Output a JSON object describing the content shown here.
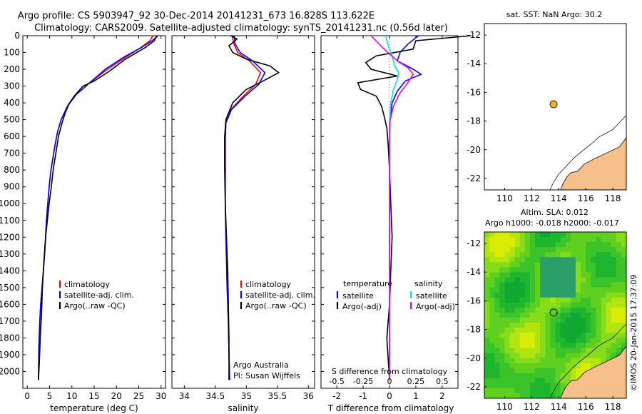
{
  "header": {
    "title_line1": "Argo profile: CS 5903947_92 30-Dec-2014 20141231_673 16.828S 113.622E",
    "title_line2": "Climatology: CARS2009. Satellite-adjusted climatology: synTS_20141231.nc (0.56d later)"
  },
  "footer": {
    "credit": "©IMOS 20-Jan-2015 17:37:09"
  },
  "colors": {
    "climatology": "#ff0000",
    "satellite": "#0000ff",
    "argo": "#000000",
    "sal_satellite": "#00e5ee",
    "sal_argo": "#ee00ee",
    "land": "#f5c08a",
    "float_marker": "#f0b429"
  },
  "chart_data": [
    {
      "type": "line",
      "xlabel": "temperature (deg C)",
      "ylabel": "",
      "xlim": [
        -1,
        31
      ],
      "ylim": [
        2100,
        0
      ],
      "xticks": [
        0,
        5,
        10,
        15,
        20,
        25,
        30
      ],
      "yticks": [
        0,
        100,
        200,
        300,
        400,
        500,
        600,
        700,
        800,
        900,
        1000,
        1100,
        1200,
        1300,
        1400,
        1500,
        1600,
        1700,
        1800,
        1900,
        2000
      ],
      "legend": {
        "placement": "lower-left",
        "entries": [
          "climatology",
          "satellite-adj. clim.",
          "Argo(..raw -QC)"
        ]
      },
      "series": [
        {
          "name": "climatology",
          "x": [
            28.2,
            27.5,
            25.5,
            22,
            18,
            14,
            11,
            9,
            7.6,
            6.8,
            6.3,
            5.8,
            5.3,
            4.9,
            4.6,
            4.3,
            4.1,
            3.9,
            3.6,
            3.3,
            3.0,
            2.8,
            2.6,
            2.5
          ],
          "y": [
            0,
            30,
            70,
            130,
            200,
            280,
            350,
            420,
            500,
            570,
            640,
            720,
            800,
            900,
            1000,
            1100,
            1200,
            1300,
            1400,
            1500,
            1600,
            1700,
            1850,
            2050
          ]
        },
        {
          "name": "satellite-adj. clim.",
          "x": [
            29.3,
            28,
            25.6,
            21.5,
            17.5,
            14,
            11,
            9,
            7.6,
            6.8,
            6.3,
            5.8,
            5.3,
            4.9,
            4.6,
            4.3,
            4.1,
            3.9,
            3.6,
            3.3,
            3.0,
            2.8,
            2.6,
            2.5
          ],
          "y": [
            0,
            30,
            70,
            130,
            200,
            280,
            350,
            420,
            500,
            570,
            640,
            720,
            800,
            900,
            1000,
            1100,
            1200,
            1300,
            1400,
            1500,
            1600,
            1700,
            1850,
            2050
          ]
        },
        {
          "name": "Argo(..raw -QC)",
          "x": [
            29.0,
            28.5,
            26.5,
            22,
            18.5,
            15,
            12.5,
            11.5,
            10.5,
            9.5,
            8.5,
            7.8,
            7.0,
            6.4,
            5.8,
            5.4,
            4.9,
            4.5,
            4.1,
            3.7,
            3.4,
            3.2,
            2.9,
            2.7,
            2.5
          ],
          "y": [
            0,
            30,
            70,
            140,
            210,
            270,
            300,
            330,
            360,
            400,
            460,
            520,
            600,
            700,
            800,
            900,
            1000,
            1100,
            1200,
            1350,
            1500,
            1650,
            1800,
            1950,
            2050
          ]
        }
      ]
    },
    {
      "type": "line",
      "xlabel": "salinity",
      "xlim": [
        33.8,
        36.1
      ],
      "ylim": [
        2100,
        0
      ],
      "xticks": [
        34,
        34.5,
        35,
        35.5,
        36
      ],
      "legend": {
        "placement": "lower-right",
        "entries": [
          "climatology",
          "satellite-adj. clim.",
          "Argo(..raw -QC)"
        ]
      },
      "annotation_lines": [
        "Argo Australia",
        "PI: Susan Wijffels"
      ],
      "series": [
        {
          "name": "climatology",
          "x": [
            34.77,
            34.8,
            34.86,
            35.05,
            35.23,
            35.15,
            34.95,
            34.75,
            34.67,
            34.66,
            34.66,
            34.66,
            34.67,
            34.69,
            34.71,
            34.72,
            34.73
          ],
          "y": [
            0,
            50,
            100,
            150,
            220,
            290,
            360,
            440,
            520,
            600,
            800,
            1000,
            1200,
            1500,
            1700,
            1900,
            2050
          ]
        },
        {
          "name": "satellite-adj. clim.",
          "x": [
            34.8,
            34.82,
            34.9,
            35.1,
            35.3,
            35.2,
            34.98,
            34.76,
            34.67,
            34.66,
            34.66,
            34.66,
            34.67,
            34.69,
            34.71,
            34.72,
            34.73
          ],
          "y": [
            0,
            50,
            100,
            150,
            220,
            290,
            360,
            440,
            520,
            600,
            800,
            1000,
            1200,
            1500,
            1700,
            1900,
            2050
          ]
        },
        {
          "name": "Argo(..raw -QC)",
          "x": [
            34.75,
            34.85,
            34.72,
            34.78,
            35.0,
            35.38,
            35.52,
            35.32,
            35.0,
            34.78,
            34.67,
            34.65,
            34.65,
            34.66,
            34.68,
            34.7,
            34.71,
            34.72,
            34.72
          ],
          "y": [
            0,
            20,
            60,
            100,
            140,
            180,
            220,
            260,
            320,
            400,
            500,
            600,
            800,
            1000,
            1200,
            1400,
            1600,
            1800,
            2050
          ]
        }
      ]
    },
    {
      "type": "line",
      "xlabel": "T difference from climatology",
      "xlabel_top": "S difference from climatology",
      "xlim": [
        -2.6,
        2.6
      ],
      "ylim": [
        2100,
        0
      ],
      "xticks": [
        -2,
        -1,
        0,
        1,
        2
      ],
      "xticks_secondary": [
        "-0.5",
        "-0.25",
        "0",
        "0.25",
        "0.5"
      ],
      "legend": {
        "placement": "lower-center",
        "headers": [
          "temperature",
          "salinity"
        ],
        "temperature_entries": [
          "satellite",
          "Argo(-adj)"
        ],
        "salinity_entries": [
          "satellite",
          "Argo(-adj)"
        ]
      },
      "series": [
        {
          "name": "temperature satellite",
          "x": [
            1.1,
            0.7,
            0.4,
            0.3,
            0.9,
            1.2,
            0.6,
            0.3,
            0.1,
            0.02,
            0.0,
            0.0,
            0.0
          ],
          "y": [
            0,
            50,
            100,
            150,
            200,
            230,
            270,
            330,
            400,
            500,
            700,
            1200,
            2050
          ]
        },
        {
          "name": "temperature Argo(-adj)",
          "x": [
            3.1,
            1.0,
            0.9,
            -0.5,
            -0.9,
            -0.7,
            0.3,
            -1.2,
            -1.1,
            -0.5,
            -0.3,
            -0.2,
            -0.1,
            -0.05,
            0.0,
            0.05,
            0.1,
            0.05,
            0.0,
            -0.1,
            0.0
          ],
          "y": [
            0,
            30,
            80,
            120,
            160,
            200,
            240,
            280,
            320,
            360,
            420,
            480,
            550,
            650,
            800,
            1000,
            1200,
            1400,
            1600,
            1800,
            2050
          ]
        },
        {
          "name": "salinity satellite",
          "x": [
            -0.15,
            -0.05,
            0.1,
            0.2,
            0.35,
            0.3,
            0.15,
            0.05,
            0.01,
            0.0,
            0.0
          ],
          "y": [
            0,
            60,
            120,
            180,
            220,
            260,
            320,
            400,
            500,
            700,
            2050
          ]
        },
        {
          "name": "salinity Argo(-adj)",
          "x": [
            -0.7,
            -0.2,
            0.3,
            0.7,
            0.9,
            0.7,
            0.4,
            0.15,
            0.0,
            0.0,
            0.0
          ],
          "y": [
            0,
            80,
            150,
            190,
            230,
            280,
            340,
            420,
            520,
            700,
            2050
          ]
        }
      ]
    },
    {
      "type": "scatter",
      "title": "sat. SST: NaN Argo: 30.2",
      "xlim": [
        108.5,
        119
      ],
      "ylim": [
        -22.8,
        -11.2
      ],
      "xticks": [
        110,
        112,
        114,
        116,
        118
      ],
      "yticks": [
        -12,
        -14,
        -16,
        -18,
        -20,
        -22
      ],
      "points": [
        {
          "x": 113.622,
          "y": -16.828
        }
      ]
    },
    {
      "type": "heatmap",
      "title_lines": [
        "Altim. SLA: 0.012",
        "Argo h1000: -0.018 h2000: -0.017"
      ],
      "xlim": [
        108.5,
        119
      ],
      "ylim": [
        -22.8,
        -11.2
      ],
      "xticks": [
        110,
        112,
        114,
        116,
        118
      ],
      "yticks": [
        -12,
        -14,
        -16,
        -18,
        -20,
        -22
      ],
      "points": [
        {
          "x": 113.622,
          "y": -16.828
        }
      ]
    }
  ]
}
